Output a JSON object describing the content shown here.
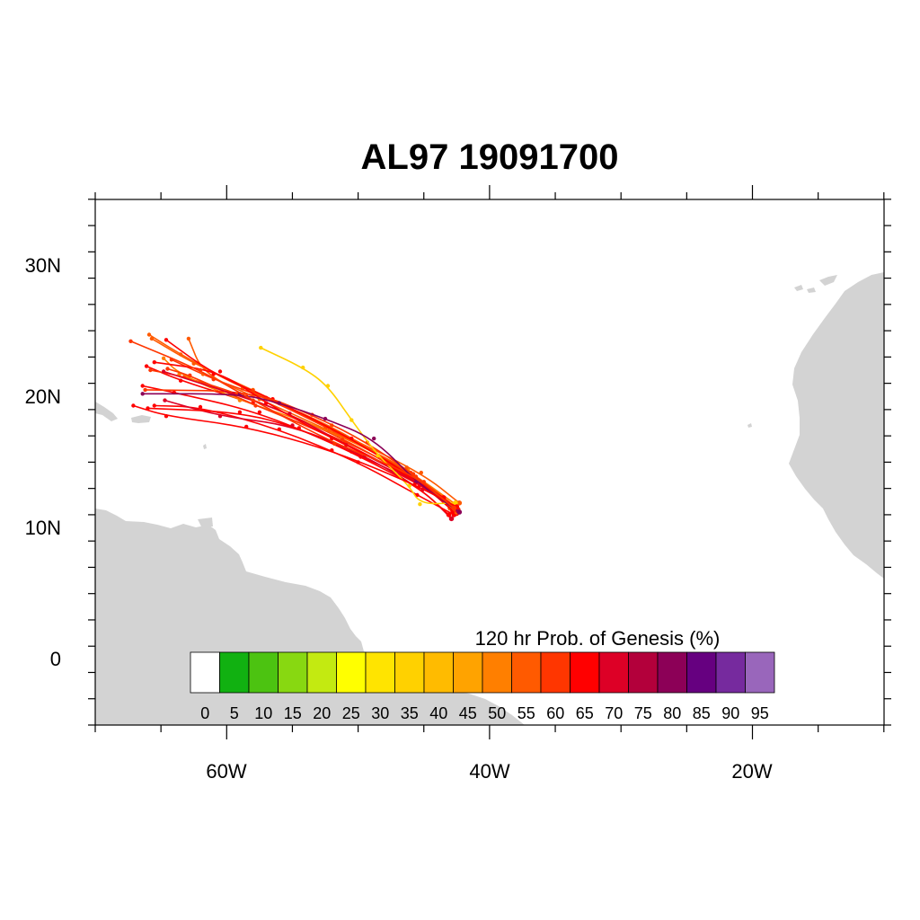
{
  "title": "AL97 19091700",
  "map": {
    "lon_range": [
      -70,
      -10
    ],
    "lat_range": [
      -5,
      35
    ],
    "x_tick_labels": [
      "60W",
      "40W",
      "20W"
    ],
    "y_tick_labels": [
      "30N",
      "20N",
      "10N",
      "0"
    ],
    "land_color": "#d3d3d3",
    "ocean_color": "#ffffff"
  },
  "colorbar": {
    "title": "120 hr Prob. of Genesis (%)",
    "labels": [
      "0",
      "5",
      "10",
      "15",
      "20",
      "25",
      "30",
      "35",
      "40",
      "45",
      "50",
      "55",
      "60",
      "65",
      "70",
      "75",
      "80",
      "85",
      "90",
      "95"
    ],
    "colors": [
      "#ffffff",
      "#11b111",
      "#4cc311",
      "#88d811",
      "#c3ea11",
      "#ffff00",
      "#ffe400",
      "#ffd100",
      "#ffbb00",
      "#ffa300",
      "#ff7f00",
      "#ff5a00",
      "#ff3600",
      "#ff0000",
      "#dd0026",
      "#b3003b",
      "#8c0057",
      "#660080",
      "#762a9e",
      "#9966bb"
    ]
  },
  "tracks": [
    {
      "color": "#ff0000",
      "points": [
        [
          -42.6,
          11.3
        ],
        [
          -45.5,
          13.5
        ],
        [
          -51,
          16.5
        ],
        [
          -58,
          19.5
        ],
        [
          -63.5,
          21.2
        ],
        [
          -66.1,
          22.3
        ]
      ]
    },
    {
      "color": "#ff0000",
      "points": [
        [
          -42.5,
          11.1
        ],
        [
          -45,
          13.2
        ],
        [
          -50.5,
          15.8
        ],
        [
          -57.5,
          18.8
        ],
        [
          -64,
          20.3
        ],
        [
          -66.4,
          20.8
        ]
      ]
    },
    {
      "color": "#ff3600",
      "points": [
        [
          -42.8,
          11.6
        ],
        [
          -45.8,
          13.8
        ],
        [
          -51.5,
          17.0
        ],
        [
          -58.5,
          20.0
        ],
        [
          -63.2,
          21.5
        ],
        [
          -65.8,
          22.0
        ]
      ]
    },
    {
      "color": "#ff5a00",
      "points": [
        [
          -42.3,
          11.9
        ],
        [
          -45.2,
          14.2
        ],
        [
          -51.8,
          17.4
        ],
        [
          -58,
          20.5
        ],
        [
          -62.5,
          22.5
        ],
        [
          -65.7,
          24.4
        ]
      ]
    },
    {
      "color": "#ff0000",
      "points": [
        [
          -42.7,
          11.0
        ],
        [
          -45.5,
          12.5
        ],
        [
          -50,
          15.0
        ],
        [
          -56,
          17.5
        ],
        [
          -62,
          19.2
        ],
        [
          -65.5,
          19.3
        ]
      ]
    },
    {
      "color": "#dd0026",
      "points": [
        [
          -42.9,
          10.7
        ],
        [
          -45.1,
          12.9
        ],
        [
          -49.5,
          15.5
        ],
        [
          -55,
          17.8
        ],
        [
          -60.5,
          18.5
        ],
        [
          -64.7,
          19.7
        ]
      ]
    },
    {
      "color": "#ff5a00",
      "points": [
        [
          -43.0,
          11.5
        ],
        [
          -45.9,
          14.0
        ],
        [
          -52,
          17.8
        ],
        [
          -58.8,
          20.6
        ],
        [
          -63.5,
          23.2
        ],
        [
          -65.9,
          24.7
        ]
      ]
    },
    {
      "color": "#ff7f00",
      "points": [
        [
          -42.6,
          11.8
        ],
        [
          -46.2,
          14.4
        ],
        [
          -52.5,
          17.6
        ],
        [
          -59,
          19.7
        ],
        [
          -63.6,
          21.7
        ],
        [
          -64.8,
          22.9
        ]
      ]
    },
    {
      "color": "#ff3600",
      "points": [
        [
          -42.4,
          11.4
        ],
        [
          -45.6,
          13.9
        ],
        [
          -51.2,
          16.7
        ],
        [
          -57.8,
          19.3
        ],
        [
          -62.8,
          21.6
        ],
        [
          -64.5,
          22.1
        ]
      ]
    },
    {
      "color": "#ff3600",
      "points": [
        [
          -42.7,
          11.7
        ],
        [
          -46,
          14.2
        ],
        [
          -51.5,
          17.2
        ],
        [
          -57,
          19.9
        ],
        [
          -61,
          21.3
        ],
        [
          -64.2,
          22.8
        ]
      ]
    },
    {
      "color": "#ff5a00",
      "points": [
        [
          -42.5,
          11.2
        ],
        [
          -46.3,
          14.6
        ],
        [
          -52.2,
          17.4
        ],
        [
          -57.5,
          19.8
        ],
        [
          -61.8,
          21.7
        ],
        [
          -62.9,
          24.4
        ]
      ]
    },
    {
      "color": "#ff0000",
      "points": [
        [
          -42.8,
          11.3
        ],
        [
          -45.3,
          13.5
        ],
        [
          -50.5,
          16.8
        ],
        [
          -56.5,
          19.8
        ],
        [
          -61,
          21.7
        ],
        [
          -64.6,
          24.3
        ]
      ]
    },
    {
      "color": "#ff0000",
      "points": [
        [
          -43.1,
          11.0
        ],
        [
          -45.4,
          13.1
        ],
        [
          -49.8,
          15.4
        ],
        [
          -54.5,
          17.6
        ],
        [
          -59,
          18.8
        ],
        [
          -66.0,
          19.1
        ]
      ]
    },
    {
      "color": "#ff3600",
      "points": [
        [
          -42.6,
          11.4
        ],
        [
          -45.0,
          13.5
        ],
        [
          -49.3,
          16.5
        ],
        [
          -53.5,
          18.6
        ],
        [
          -58,
          20.4
        ],
        [
          -66.2,
          20.5
        ]
      ]
    },
    {
      "color": "#dd0026",
      "points": [
        [
          -42.4,
          11.3
        ],
        [
          -45.7,
          13.6
        ],
        [
          -50.9,
          16.3
        ],
        [
          -55.2,
          18.7
        ],
        [
          -59.5,
          20.2
        ],
        [
          -64.8,
          21.9
        ]
      ]
    },
    {
      "color": "#ff0000",
      "points": [
        [
          -43.5,
          12.3
        ],
        [
          -46.2,
          14.0
        ],
        [
          -52,
          16.8
        ],
        [
          -57,
          19.5
        ],
        [
          -60.5,
          21.9
        ],
        [
          -65.5,
          22.6
        ]
      ]
    },
    {
      "color": "#ffd100",
      "points": [
        [
          -42.6,
          11.9
        ],
        [
          -45.3,
          11.8
        ],
        [
          -46.1,
          13.2
        ],
        [
          -48.5,
          15.5
        ],
        [
          -50.5,
          18.2
        ],
        [
          -52.3,
          20.8
        ],
        [
          -54.2,
          22.2
        ],
        [
          -57.4,
          23.7
        ]
      ]
    },
    {
      "color": "#8c0057",
      "points": [
        [
          -42.3,
          11.2
        ],
        [
          -45.6,
          13.5
        ],
        [
          -48.8,
          16.8
        ],
        [
          -52.5,
          18.3
        ],
        [
          -56,
          19.5
        ],
        [
          -59,
          20.2
        ],
        [
          -66.4,
          20.2
        ]
      ]
    },
    {
      "color": "#ff0000",
      "points": [
        [
          -42.5,
          11.6
        ],
        [
          -45.7,
          13.3
        ],
        [
          -52,
          15.9
        ],
        [
          -58.5,
          17.7
        ],
        [
          -64.6,
          18.5
        ],
        [
          -67.1,
          19.3
        ]
      ]
    },
    {
      "color": "#ff3600",
      "points": [
        [
          -42.7,
          11.5
        ],
        [
          -45.8,
          14.1
        ],
        [
          -51.8,
          16.4
        ],
        [
          -58,
          19.7
        ],
        [
          -62,
          22.0
        ],
        [
          -67.3,
          24.2
        ]
      ]
    }
  ]
}
